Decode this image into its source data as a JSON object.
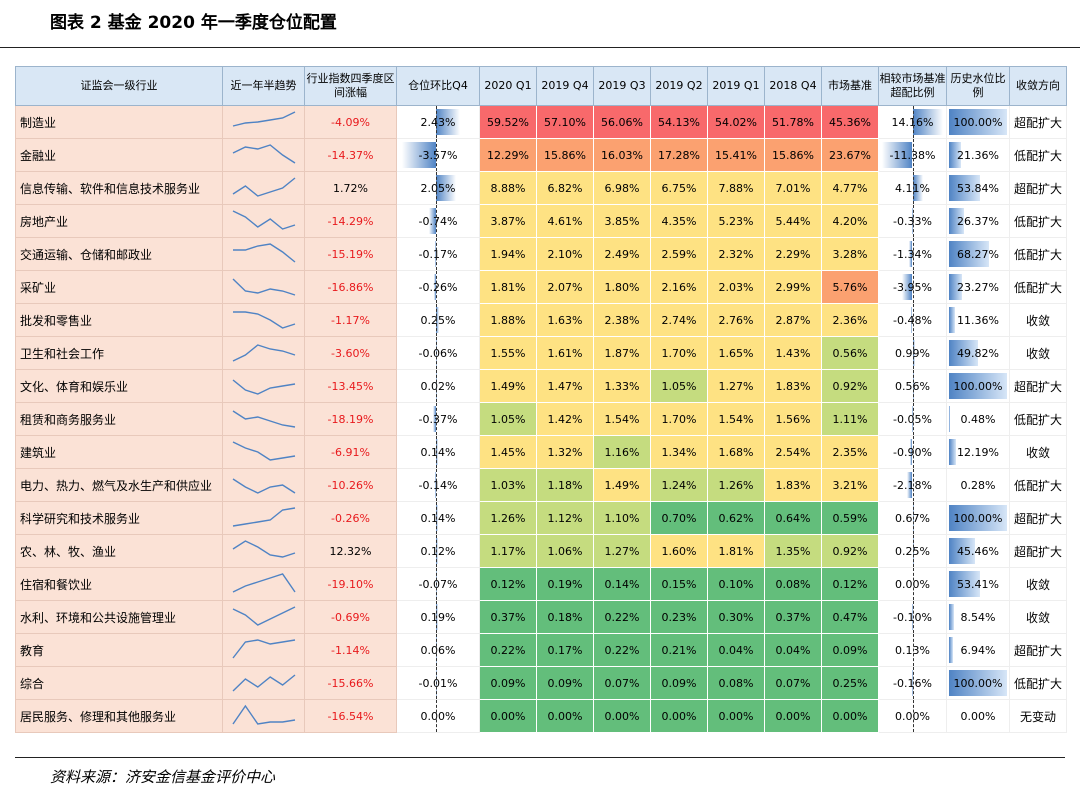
{
  "title": "图表 2 基金 2020 年一季度仓位配置",
  "source": "资料来源：济安金信基金评价中心",
  "headers": [
    "证监会一级行业",
    "近一年半趋势",
    "行业指数四季度区间涨幅",
    "仓位环比Q4",
    "2020 Q1",
    "2019 Q4",
    "2019 Q3",
    "2019 Q2",
    "2019 Q1",
    "2018 Q4",
    "市场基准",
    "相较市场基准超配比例",
    "历史水位比例",
    "收敛方向"
  ],
  "colors": {
    "red": "#f8696b",
    "orange": "#fba170",
    "yellow": "#fee283",
    "lightgreen": "#c5dc7f",
    "green": "#63be7b",
    "barblue": "#4f83c4",
    "negred": "#e8191c"
  },
  "rows": [
    {
      "name": "制造业",
      "chg": "-4.09%",
      "qoq": "2.43%",
      "h": [
        "59.52%",
        "57.10%",
        "56.06%",
        "54.13%",
        "54.02%",
        "51.78%",
        "45.36%"
      ],
      "hc": [
        "red",
        "red",
        "red",
        "red",
        "red",
        "red",
        "red"
      ],
      "over": "14.16%",
      "hist": "100.00%",
      "trend": "超配扩大",
      "spark": [
        0.7,
        0.55,
        0.5,
        0.4,
        0.3,
        0.0
      ]
    },
    {
      "name": "金融业",
      "chg": "-14.37%",
      "qoq": "-3.57%",
      "h": [
        "12.29%",
        "15.86%",
        "16.03%",
        "17.28%",
        "15.41%",
        "15.86%",
        "23.67%"
      ],
      "hc": [
        "orange",
        "orange",
        "orange",
        "orange",
        "orange",
        "orange",
        "orange"
      ],
      "over": "-11.38%",
      "hist": "21.36%",
      "trend": "低配扩大",
      "spark": [
        0.4,
        0.1,
        0.2,
        0.0,
        0.5,
        0.9
      ]
    },
    {
      "name": "信息传输、软件和信息技术服务业",
      "chg": "1.72%",
      "qoq": "2.05%",
      "h": [
        "8.88%",
        "6.82%",
        "6.98%",
        "6.75%",
        "7.88%",
        "7.01%",
        "4.77%"
      ],
      "hc": [
        "yellow",
        "yellow",
        "yellow",
        "yellow",
        "yellow",
        "yellow",
        "yellow"
      ],
      "over": "4.11%",
      "hist": "53.84%",
      "trend": "超配扩大",
      "spark": [
        0.8,
        0.4,
        0.9,
        0.7,
        0.5,
        0.0
      ]
    },
    {
      "name": "房地产业",
      "chg": "-14.29%",
      "qoq": "-0.74%",
      "h": [
        "3.87%",
        "4.61%",
        "3.85%",
        "4.35%",
        "5.23%",
        "5.44%",
        "4.20%"
      ],
      "hc": [
        "yellow",
        "yellow",
        "yellow",
        "yellow",
        "yellow",
        "yellow",
        "yellow"
      ],
      "over": "-0.33%",
      "hist": "26.37%",
      "trend": "低配扩大",
      "spark": [
        0.0,
        0.3,
        0.8,
        0.4,
        0.9,
        0.7
      ]
    },
    {
      "name": "交通运输、仓储和邮政业",
      "chg": "-15.19%",
      "qoq": "-0.17%",
      "h": [
        "1.94%",
        "2.10%",
        "2.49%",
        "2.59%",
        "2.32%",
        "2.29%",
        "3.28%"
      ],
      "hc": [
        "yellow",
        "yellow",
        "yellow",
        "yellow",
        "yellow",
        "yellow",
        "yellow"
      ],
      "over": "-1.34%",
      "hist": "68.27%",
      "trend": "低配扩大",
      "spark": [
        0.3,
        0.3,
        0.1,
        0.0,
        0.4,
        0.9
      ]
    },
    {
      "name": "采矿业",
      "chg": "-16.86%",
      "qoq": "-0.26%",
      "h": [
        "1.81%",
        "2.07%",
        "1.80%",
        "2.16%",
        "2.03%",
        "2.99%",
        "5.76%"
      ],
      "hc": [
        "yellow",
        "yellow",
        "yellow",
        "yellow",
        "yellow",
        "yellow",
        "orange"
      ],
      "over": "-3.95%",
      "hist": "23.27%",
      "trend": "低配扩大",
      "spark": [
        0.1,
        0.7,
        0.8,
        0.6,
        0.7,
        0.9
      ]
    },
    {
      "name": "批发和零售业",
      "chg": "-1.17%",
      "qoq": "0.25%",
      "h": [
        "1.88%",
        "1.63%",
        "2.38%",
        "2.74%",
        "2.76%",
        "2.87%",
        "2.36%"
      ],
      "hc": [
        "yellow",
        "yellow",
        "yellow",
        "yellow",
        "yellow",
        "yellow",
        "yellow"
      ],
      "over": "-0.48%",
      "hist": "11.36%",
      "trend": "收敛",
      "spark": [
        0.1,
        0.1,
        0.2,
        0.5,
        0.9,
        0.7
      ]
    },
    {
      "name": "卫生和社会工作",
      "chg": "-3.60%",
      "qoq": "-0.06%",
      "h": [
        "1.55%",
        "1.61%",
        "1.87%",
        "1.70%",
        "1.65%",
        "1.43%",
        "0.56%"
      ],
      "hc": [
        "yellow",
        "yellow",
        "yellow",
        "yellow",
        "yellow",
        "yellow",
        "lightgreen"
      ],
      "over": "0.99%",
      "hist": "49.82%",
      "trend": "收敛",
      "spark": [
        0.9,
        0.6,
        0.1,
        0.3,
        0.4,
        0.6
      ]
    },
    {
      "name": "文化、体育和娱乐业",
      "chg": "-13.45%",
      "qoq": "0.02%",
      "h": [
        "1.49%",
        "1.47%",
        "1.33%",
        "1.05%",
        "1.27%",
        "1.83%",
        "0.92%"
      ],
      "hc": [
        "yellow",
        "yellow",
        "yellow",
        "lightgreen",
        "yellow",
        "yellow",
        "lightgreen"
      ],
      "over": "0.56%",
      "hist": "100.00%",
      "trend": "超配扩大",
      "spark": [
        0.2,
        0.7,
        0.9,
        0.6,
        0.5,
        0.4
      ]
    },
    {
      "name": "租赁和商务服务业",
      "chg": "-18.19%",
      "qoq": "-0.37%",
      "h": [
        "1.05%",
        "1.42%",
        "1.54%",
        "1.70%",
        "1.54%",
        "1.56%",
        "1.11%"
      ],
      "hc": [
        "lightgreen",
        "yellow",
        "yellow",
        "yellow",
        "yellow",
        "yellow",
        "lightgreen"
      ],
      "over": "-0.05%",
      "hist": "0.48%",
      "trend": "低配扩大",
      "spark": [
        0.1,
        0.5,
        0.4,
        0.6,
        0.8,
        0.9
      ]
    },
    {
      "name": "建筑业",
      "chg": "-6.91%",
      "qoq": "0.14%",
      "h": [
        "1.45%",
        "1.32%",
        "1.16%",
        "1.34%",
        "1.68%",
        "2.54%",
        "2.35%"
      ],
      "hc": [
        "yellow",
        "yellow",
        "lightgreen",
        "yellow",
        "yellow",
        "yellow",
        "yellow"
      ],
      "over": "-0.90%",
      "hist": "12.19%",
      "trend": "收敛",
      "spark": [
        0.0,
        0.3,
        0.5,
        0.9,
        0.8,
        0.7
      ]
    },
    {
      "name": "电力、热力、燃气及水生产和供应业",
      "chg": "-10.26%",
      "qoq": "-0.14%",
      "h": [
        "1.03%",
        "1.18%",
        "1.49%",
        "1.24%",
        "1.26%",
        "1.83%",
        "3.21%"
      ],
      "hc": [
        "lightgreen",
        "lightgreen",
        "yellow",
        "lightgreen",
        "lightgreen",
        "yellow",
        "yellow"
      ],
      "over": "-2.18%",
      "hist": "0.28%",
      "trend": "低配扩大",
      "spark": [
        0.2,
        0.6,
        0.9,
        0.6,
        0.5,
        0.9
      ]
    },
    {
      "name": "科学研究和技术服务业",
      "chg": "-0.26%",
      "qoq": "0.14%",
      "h": [
        "1.26%",
        "1.12%",
        "1.10%",
        "0.70%",
        "0.62%",
        "0.64%",
        "0.59%"
      ],
      "hc": [
        "lightgreen",
        "lightgreen",
        "lightgreen",
        "green",
        "green",
        "green",
        "green"
      ],
      "over": "0.67%",
      "hist": "100.00%",
      "trend": "超配扩大",
      "spark": [
        0.9,
        0.8,
        0.7,
        0.6,
        0.1,
        0.0
      ]
    },
    {
      "name": "农、林、牧、渔业",
      "chg": "12.32%",
      "qoq": "0.12%",
      "h": [
        "1.17%",
        "1.06%",
        "1.27%",
        "1.60%",
        "1.81%",
        "1.35%",
        "0.92%"
      ],
      "hc": [
        "lightgreen",
        "lightgreen",
        "lightgreen",
        "yellow",
        "yellow",
        "lightgreen",
        "lightgreen"
      ],
      "over": "0.25%",
      "hist": "45.46%",
      "trend": "超配扩大",
      "spark": [
        0.4,
        0.0,
        0.3,
        0.7,
        0.8,
        0.6
      ]
    },
    {
      "name": "住宿和餐饮业",
      "chg": "-19.10%",
      "qoq": "-0.07%",
      "h": [
        "0.12%",
        "0.19%",
        "0.14%",
        "0.15%",
        "0.10%",
        "0.08%",
        "0.12%"
      ],
      "hc": [
        "green",
        "green",
        "green",
        "green",
        "green",
        "green",
        "green"
      ],
      "over": "0.00%",
      "hist": "53.41%",
      "trend": "收敛",
      "spark": [
        0.9,
        0.6,
        0.4,
        0.2,
        0.0,
        0.9
      ]
    },
    {
      "name": "水利、环境和公共设施管理业",
      "chg": "-0.69%",
      "qoq": "0.19%",
      "h": [
        "0.37%",
        "0.18%",
        "0.22%",
        "0.23%",
        "0.30%",
        "0.37%",
        "0.47%"
      ],
      "hc": [
        "green",
        "green",
        "green",
        "green",
        "green",
        "green",
        "green"
      ],
      "over": "-0.10%",
      "hist": "8.54%",
      "trend": "收敛",
      "spark": [
        0.1,
        0.4,
        0.9,
        0.6,
        0.3,
        0.0
      ]
    },
    {
      "name": "教育",
      "chg": "-1.14%",
      "qoq": "0.06%",
      "h": [
        "0.22%",
        "0.17%",
        "0.22%",
        "0.21%",
        "0.04%",
        "0.04%",
        "0.09%"
      ],
      "hc": [
        "green",
        "green",
        "green",
        "green",
        "green",
        "green",
        "green"
      ],
      "over": "0.13%",
      "hist": "6.94%",
      "trend": "超配扩大",
      "spark": [
        0.9,
        0.1,
        0.0,
        0.2,
        0.1,
        0.0
      ]
    },
    {
      "name": "综合",
      "chg": "-15.66%",
      "qoq": "-0.01%",
      "h": [
        "0.09%",
        "0.09%",
        "0.07%",
        "0.09%",
        "0.08%",
        "0.07%",
        "0.25%"
      ],
      "hc": [
        "green",
        "green",
        "green",
        "green",
        "green",
        "green",
        "green"
      ],
      "over": "-0.16%",
      "hist": "100.00%",
      "trend": "低配扩大",
      "spark": [
        0.9,
        0.3,
        0.7,
        0.2,
        0.6,
        0.1
      ]
    },
    {
      "name": "居民服务、修理和其他服务业",
      "chg": "-16.54%",
      "qoq": "0.00%",
      "h": [
        "0.00%",
        "0.00%",
        "0.00%",
        "0.00%",
        "0.00%",
        "0.00%",
        "0.00%"
      ],
      "hc": [
        "green",
        "green",
        "green",
        "green",
        "green",
        "green",
        "green"
      ],
      "over": "0.00%",
      "hist": "0.00%",
      "trend": "无变动",
      "spark": [
        0.9,
        0.0,
        0.9,
        0.8,
        0.8,
        0.7
      ]
    }
  ]
}
